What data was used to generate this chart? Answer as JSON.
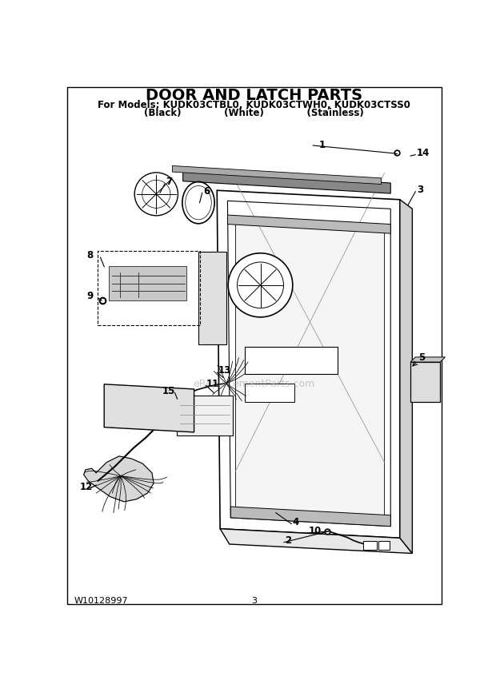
{
  "title": "DOOR AND LATCH PARTS",
  "subtitle_line1": "For Models: KUDK03CTBL0, KUDK03CTWH0, KUDK03CTSS0",
  "subtitle_line2": "(Black)             (White)             (Stainless)",
  "footer_left": "W10128997",
  "footer_center": "3",
  "bg_color": "#ffffff",
  "title_fontsize": 14,
  "subtitle_fontsize": 8.5,
  "footer_fontsize": 8,
  "watermark": "eReplacementParts.com"
}
